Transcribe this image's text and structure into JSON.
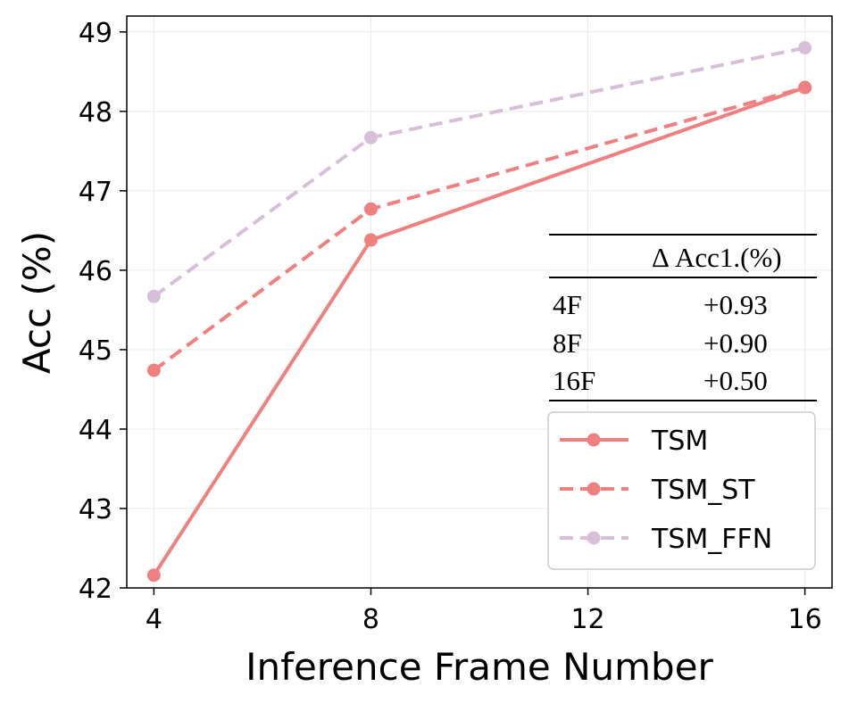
{
  "chart_data": {
    "type": "line",
    "title": "",
    "xlabel": "Inference Frame Number",
    "ylabel": "Acc (%)",
    "x": [
      4,
      8,
      16
    ],
    "xticks": [
      "4",
      "8",
      "12",
      "16"
    ],
    "yticks": [
      "42",
      "43",
      "44",
      "45",
      "46",
      "47",
      "48",
      "49"
    ],
    "xlim": [
      3.5,
      16.5
    ],
    "ylim": [
      42.0,
      49.2
    ],
    "grid": true,
    "legend_position": "lower-right",
    "series": [
      {
        "name": "TSM",
        "values": [
          42.16,
          46.38,
          48.3
        ],
        "color": "#f08080",
        "style": "solid"
      },
      {
        "name": "TSM_ST",
        "values": [
          44.74,
          46.77,
          48.3
        ],
        "color": "#f08080",
        "style": "dashed"
      },
      {
        "name": "TSM_FFN",
        "values": [
          45.67,
          47.67,
          48.8
        ],
        "color": "#d8bfd8",
        "style": "dashed"
      }
    ],
    "inset_table": {
      "header": [
        "",
        "Δ Acc1.(%)"
      ],
      "rows": [
        [
          "4F",
          "+0.93"
        ],
        [
          "8F",
          "+0.90"
        ],
        [
          "16F",
          "+0.50"
        ]
      ]
    }
  }
}
